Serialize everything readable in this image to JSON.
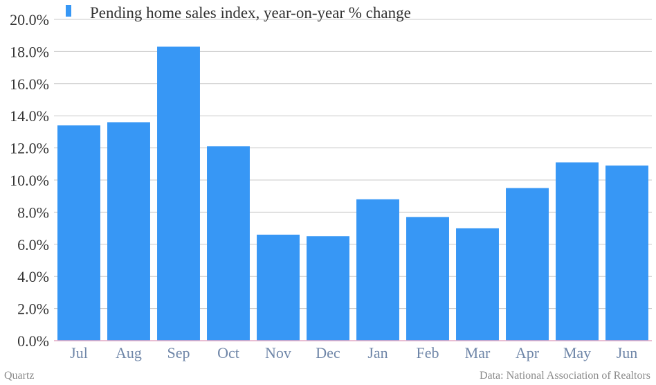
{
  "chart_data": {
    "type": "bar",
    "categories": [
      "Jul",
      "Aug",
      "Sep",
      "Oct",
      "Nov",
      "Dec",
      "Jan",
      "Feb",
      "Mar",
      "Apr",
      "May",
      "Jun"
    ],
    "series": [
      {
        "name": "Pending home sales index, year-on-year % change",
        "values": [
          13.4,
          13.6,
          18.3,
          12.1,
          6.6,
          6.5,
          8.8,
          7.7,
          7.0,
          9.5,
          11.1,
          10.9
        ]
      }
    ],
    "ylim": [
      0,
      20
    ],
    "yticks": [
      "0.0%",
      "2.0%",
      "4.0%",
      "6.0%",
      "8.0%",
      "10.0%",
      "12.0%",
      "14.0%",
      "16.0%",
      "18.0%",
      "20.0%"
    ],
    "grid": true,
    "legend_position": "top-left",
    "colors": {
      "bar": "#3797f5",
      "grid": "#c8c8c8",
      "baseline": "#e3a9c4"
    }
  },
  "footer": {
    "source_left": "Quartz",
    "source_right": "Data: National Association of Realtors"
  }
}
